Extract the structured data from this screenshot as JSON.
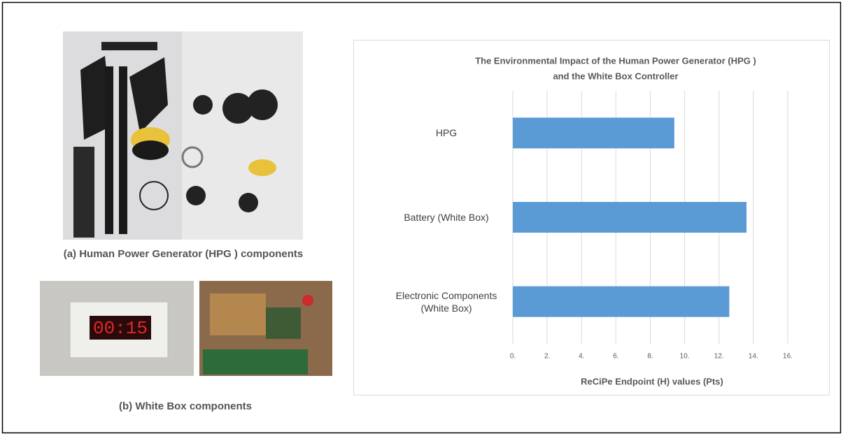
{
  "captions": {
    "a": "(a) Human Power Generator (HPG ) components",
    "b": "(b) White Box components",
    "clock_display": "00:15"
  },
  "chart_data": {
    "type": "bar",
    "orientation": "horizontal",
    "title": [
      "The Environmental Impact of the Human Power Generator (HPG )",
      "and the  White Box Controller"
    ],
    "x_label": "ReCiPe Endpoint (H) values (Pts)",
    "categories": [
      "HPG",
      "Battery (White Box)",
      "Electronic Components (White Box)"
    ],
    "values": [
      9.4,
      13.6,
      12.6
    ],
    "color": "#5b9bd5",
    "xlim": [
      0,
      16
    ],
    "xticks": [
      {
        "value": 0,
        "label": "0."
      },
      {
        "value": 2,
        "label": "2."
      },
      {
        "value": 4,
        "label": "4."
      },
      {
        "value": 6,
        "label": "6."
      },
      {
        "value": 8,
        "label": "8."
      },
      {
        "value": 10,
        "label": "10."
      },
      {
        "value": 12,
        "label": "12."
      },
      {
        "value": 14,
        "label": "14."
      },
      {
        "value": 16,
        "label": "16."
      }
    ],
    "grid": true
  }
}
